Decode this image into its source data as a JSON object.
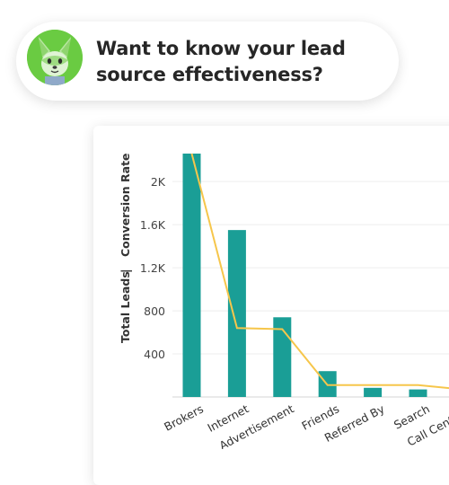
{
  "header": {
    "line1": "Want to know your lead",
    "line2": "source effectiveness?"
  },
  "colors": {
    "bar": "#1a9e96",
    "line": "#f6c64b",
    "mascot": "#6acb42"
  },
  "chart_data": {
    "type": "bar",
    "categories": [
      "Brokers",
      "Internet",
      "Advertisement",
      "Friends",
      "Referred By",
      "Search",
      "Call Center O"
    ],
    "series": [
      {
        "name": "Total Leads",
        "type": "bar",
        "values": [
          2260,
          1550,
          740,
          240,
          85,
          70,
          0
        ]
      },
      {
        "name": "Conversion Rate",
        "type": "line",
        "values": [
          2260,
          640,
          630,
          110,
          110,
          110,
          70
        ]
      }
    ],
    "ylabel_left": "Total Leads",
    "ylabel_separator": "|",
    "ylabel_right": "Conversion Rate",
    "yticks": [
      "400",
      "800",
      "1.2K",
      "1.6K",
      "2K"
    ],
    "ytick_values": [
      400,
      800,
      1200,
      1600,
      2000
    ],
    "ylim": [
      0,
      2500
    ],
    "grid": true,
    "legend": "none"
  }
}
